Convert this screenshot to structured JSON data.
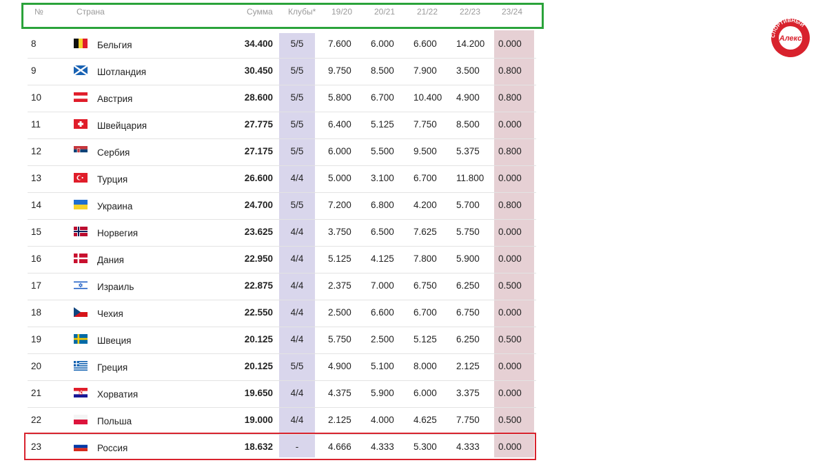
{
  "headers": {
    "num": "№",
    "country": "Страна",
    "sum": "Сумма",
    "clubs": "Клубы*",
    "s1": "19/20",
    "s2": "20/21",
    "s3": "21/22",
    "s4": "22/23",
    "s5": "23/24"
  },
  "rows": [
    {
      "num": "8",
      "flag": "belgium-flag",
      "country": "Бельгия",
      "sum": "34.400",
      "clubs": "5/5",
      "s1": "7.600",
      "s2": "6.000",
      "s3": "6.600",
      "s4": "14.200",
      "s5": "0.000"
    },
    {
      "num": "9",
      "flag": "scotland-flag",
      "country": "Шотландия",
      "sum": "30.450",
      "clubs": "5/5",
      "s1": "9.750",
      "s2": "8.500",
      "s3": "7.900",
      "s4": "3.500",
      "s5": "0.800"
    },
    {
      "num": "10",
      "flag": "austria-flag",
      "country": "Австрия",
      "sum": "28.600",
      "clubs": "5/5",
      "s1": "5.800",
      "s2": "6.700",
      "s3": "10.400",
      "s4": "4.900",
      "s5": "0.800"
    },
    {
      "num": "11",
      "flag": "switzerland-flag",
      "country": "Швейцария",
      "sum": "27.775",
      "clubs": "5/5",
      "s1": "6.400",
      "s2": "5.125",
      "s3": "7.750",
      "s4": "8.500",
      "s5": "0.000"
    },
    {
      "num": "12",
      "flag": "serbia-flag",
      "country": "Сербия",
      "sum": "27.175",
      "clubs": "5/5",
      "s1": "6.000",
      "s2": "5.500",
      "s3": "9.500",
      "s4": "5.375",
      "s5": "0.800"
    },
    {
      "num": "13",
      "flag": "turkey-flag",
      "country": "Турция",
      "sum": "26.600",
      "clubs": "4/4",
      "s1": "5.000",
      "s2": "3.100",
      "s3": "6.700",
      "s4": "11.800",
      "s5": "0.000"
    },
    {
      "num": "14",
      "flag": "ukraine-flag",
      "country": "Украина",
      "sum": "24.700",
      "clubs": "5/5",
      "s1": "7.200",
      "s2": "6.800",
      "s3": "4.200",
      "s4": "5.700",
      "s5": "0.800"
    },
    {
      "num": "15",
      "flag": "norway-flag",
      "country": "Норвегия",
      "sum": "23.625",
      "clubs": "4/4",
      "s1": "3.750",
      "s2": "6.500",
      "s3": "7.625",
      "s4": "5.750",
      "s5": "0.000"
    },
    {
      "num": "16",
      "flag": "denmark-flag",
      "country": "Дания",
      "sum": "22.950",
      "clubs": "4/4",
      "s1": "5.125",
      "s2": "4.125",
      "s3": "7.800",
      "s4": "5.900",
      "s5": "0.000"
    },
    {
      "num": "17",
      "flag": "israel-flag",
      "country": "Израиль",
      "sum": "22.875",
      "clubs": "4/4",
      "s1": "2.375",
      "s2": "7.000",
      "s3": "6.750",
      "s4": "6.250",
      "s5": "0.500"
    },
    {
      "num": "18",
      "flag": "czechia-flag",
      "country": "Чехия",
      "sum": "22.550",
      "clubs": "4/4",
      "s1": "2.500",
      "s2": "6.600",
      "s3": "6.700",
      "s4": "6.750",
      "s5": "0.000"
    },
    {
      "num": "19",
      "flag": "sweden-flag",
      "country": "Швеция",
      "sum": "20.125",
      "clubs": "4/4",
      "s1": "5.750",
      "s2": "2.500",
      "s3": "5.125",
      "s4": "6.250",
      "s5": "0.500"
    },
    {
      "num": "20",
      "flag": "greece-flag",
      "country": "Греция",
      "sum": "20.125",
      "clubs": "5/5",
      "s1": "4.900",
      "s2": "5.100",
      "s3": "8.000",
      "s4": "2.125",
      "s5": "0.000"
    },
    {
      "num": "21",
      "flag": "croatia-flag",
      "country": "Хорватия",
      "sum": "19.650",
      "clubs": "4/4",
      "s1": "4.375",
      "s2": "5.900",
      "s3": "6.000",
      "s4": "3.375",
      "s5": "0.000"
    },
    {
      "num": "22",
      "flag": "poland-flag",
      "country": "Польша",
      "sum": "19.000",
      "clubs": "4/4",
      "s1": "2.125",
      "s2": "4.000",
      "s3": "4.625",
      "s4": "7.750",
      "s5": "0.500"
    },
    {
      "num": "23",
      "flag": "russia-flag",
      "country": "Россия",
      "sum": "18.632",
      "clubs": "-",
      "s1": "4.666",
      "s2": "4.333",
      "s3": "5.300",
      "s4": "4.333",
      "s5": "0.000"
    }
  ],
  "logo": {
    "ring_text": "СПОРТИВНЫЙ",
    "center_text": "Алекс"
  },
  "colors": {
    "header_border": "#2aa33a",
    "highlight_border": "#d8222d",
    "clubs_column": "#d9d6ec",
    "last_season_column": "#e6d0d4"
  }
}
